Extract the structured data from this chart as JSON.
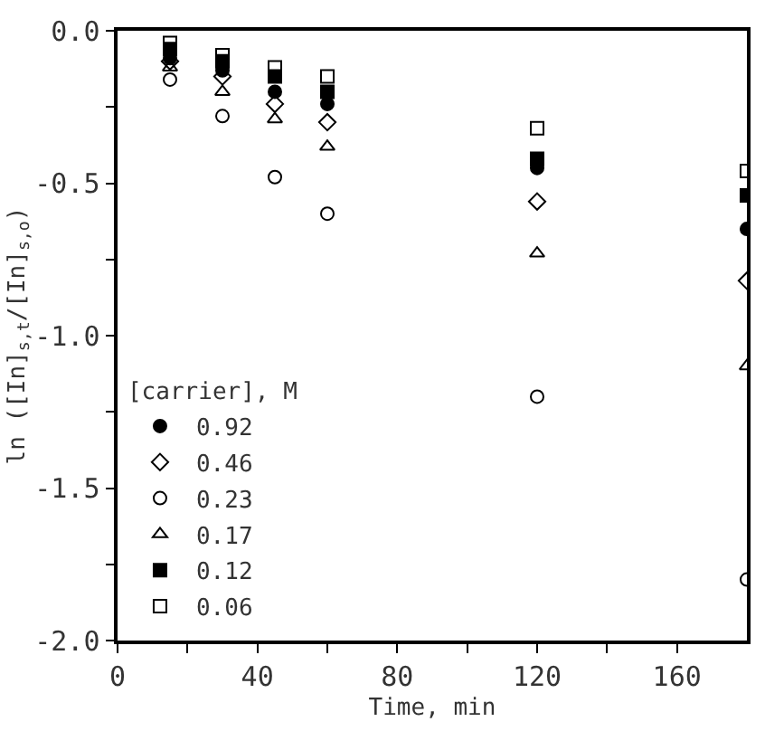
{
  "chart_data": {
    "type": "scatter",
    "xlabel": "Time, min",
    "ylabel": "ln ([In]$_{s,t}$/[In]$_{s,o}$)",
    "legend_title": "[carrier], M",
    "legend": "bottom left",
    "x": [
      15,
      30,
      45,
      60,
      120,
      180
    ],
    "series": [
      {
        "name": "0.92",
        "color": "#000000",
        "marker": "circle",
        "values": [
          -0.09,
          -0.13,
          -0.2,
          -0.24,
          -0.45,
          -0.65
        ]
      },
      {
        "name": "0.46",
        "color": "#000000",
        "marker": "diamond-open",
        "values": [
          -0.1,
          -0.15,
          -0.24,
          -0.3,
          -0.56,
          -0.82
        ]
      },
      {
        "name": "0.23",
        "color": "#000000",
        "marker": "circle-open",
        "values": [
          -0.16,
          -0.28,
          -0.48,
          -0.6,
          -1.2,
          -1.8
        ]
      },
      {
        "name": "0.17",
        "color": "#000000",
        "marker": "triangle-open",
        "values": [
          -0.12,
          -0.2,
          -0.29,
          -0.38,
          -0.73,
          -1.1
        ]
      },
      {
        "name": "0.12",
        "color": "#000000",
        "marker": "square",
        "values": [
          -0.06,
          -0.1,
          -0.15,
          -0.2,
          -0.42,
          -0.54
        ]
      },
      {
        "name": "0.06",
        "color": "#000000",
        "marker": "square-open",
        "values": [
          -0.04,
          -0.08,
          -0.12,
          -0.15,
          -0.32,
          -0.46
        ]
      }
    ],
    "xlim": [
      0,
      180
    ],
    "xticks": [
      0,
      {
        "value": 20,
        "label": null
      },
      40,
      {
        "value": 60,
        "label": null
      },
      80,
      {
        "value": 100,
        "label": null
      },
      120,
      {
        "value": 140,
        "label": null
      },
      160
    ],
    "ylim": [
      -2.0,
      0.0
    ],
    "yticks": [
      {
        "value": -2.0,
        "label": "-2.0"
      },
      {
        "value": -1.75,
        "label": null
      },
      {
        "value": -1.5,
        "label": "-1.5"
      },
      {
        "value": -1.25,
        "label": null
      },
      {
        "value": -1.0,
        "label": "-1.0"
      },
      {
        "value": -0.75,
        "label": null
      },
      {
        "value": -0.5,
        "label": "-0.5"
      },
      {
        "value": -0.25,
        "label": null
      },
      {
        "value": 0.0,
        "label": "0.0"
      }
    ]
  }
}
